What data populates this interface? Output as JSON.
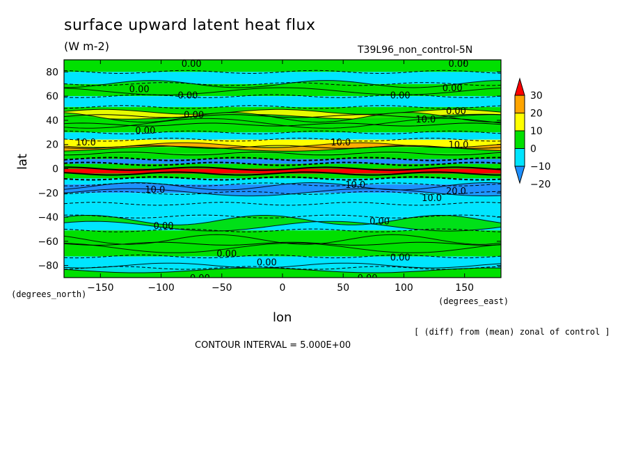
{
  "title": "surface upward latent heat flux",
  "units": "(W m-2)",
  "run_label": "T39L96_non_control-5N",
  "colors": {
    "band_-20": "#1e90ff",
    "band_-10": "#00e5ff",
    "band_0": "#00e000",
    "band_10": "#ffff00",
    "band_20": "#ffa500",
    "band_30": "#ff0000",
    "contour_line": "#000000"
  },
  "chart_data": {
    "type": "heatmap",
    "title": "surface upward latent heat flux",
    "units": "(W m-2)",
    "xlabel": "lon",
    "ylabel": "lat",
    "x_unit_label": "(degrees_east)",
    "y_unit_label": "(degrees_north)",
    "xlim": [
      -180,
      180
    ],
    "ylim": [
      -90,
      90
    ],
    "x_ticks": [
      -150,
      -100,
      -50,
      0,
      50,
      100,
      150
    ],
    "y_ticks": [
      -80,
      -60,
      -40,
      -20,
      0,
      20,
      40,
      60,
      80
    ],
    "colorbar": {
      "levels": [
        -20,
        -10,
        0,
        10,
        20,
        30
      ],
      "labels": [
        "-20",
        "-10",
        "0",
        "10",
        "20",
        "30"
      ]
    },
    "contour_interval": "5.000E+00",
    "footnote": "[ (diff) from (mean) zonal of control ]",
    "zonal_profile": [
      {
        "lat": 85,
        "value": 0
      },
      {
        "lat": 75,
        "value": -5
      },
      {
        "lat": 65,
        "value": 0
      },
      {
        "lat": 55,
        "value": -5
      },
      {
        "lat": 47,
        "value": 0
      },
      {
        "lat": 40,
        "value": 5
      },
      {
        "lat": 33,
        "value": 0
      },
      {
        "lat": 27,
        "value": -5
      },
      {
        "lat": 21,
        "value": 15
      },
      {
        "lat": 15,
        "value": 5
      },
      {
        "lat": 10,
        "value": 0
      },
      {
        "lat": 6,
        "value": -20
      },
      {
        "lat": 2,
        "value": 0
      },
      {
        "lat": -2,
        "value": 30
      },
      {
        "lat": -6,
        "value": 5
      },
      {
        "lat": -10,
        "value": -10
      },
      {
        "lat": -16,
        "value": -15
      },
      {
        "lat": -24,
        "value": -5
      },
      {
        "lat": -34,
        "value": -5
      },
      {
        "lat": -45,
        "value": -5
      },
      {
        "lat": -57,
        "value": 0
      },
      {
        "lat": -67,
        "value": 0
      },
      {
        "lat": -78,
        "value": -5
      },
      {
        "lat": -86,
        "value": 0
      }
    ],
    "contour_labels": [
      {
        "text": "0.00",
        "lon": -75,
        "lat": 87
      },
      {
        "text": "0.00",
        "lon": 145,
        "lat": 87
      },
      {
        "text": "0.00",
        "lon": -118,
        "lat": 66
      },
      {
        "text": "0.00",
        "lon": -78,
        "lat": 61
      },
      {
        "text": "0.00",
        "lon": 97,
        "lat": 61
      },
      {
        "text": "0.00",
        "lon": 140,
        "lat": 67
      },
      {
        "text": "0.00",
        "lon": -73,
        "lat": 45
      },
      {
        "text": "0.00",
        "lon": 143,
        "lat": 48
      },
      {
        "text": "10.0",
        "lon": 118,
        "lat": 41
      },
      {
        "text": "0.00",
        "lon": -113,
        "lat": 32
      },
      {
        "text": "10.0",
        "lon": -162,
        "lat": 22
      },
      {
        "text": "10.0",
        "lon": 48,
        "lat": 22
      },
      {
        "text": "10.0",
        "lon": 145,
        "lat": 20
      },
      {
        "text": "10.0",
        "lon": -105,
        "lat": -17
      },
      {
        "text": "10.0",
        "lon": 60,
        "lat": -13
      },
      {
        "text": "20.0",
        "lon": 143,
        "lat": -18
      },
      {
        "text": "10.0",
        "lon": 123,
        "lat": -24
      },
      {
        "text": "0.00",
        "lon": 80,
        "lat": -43
      },
      {
        "text": "0.00",
        "lon": -98,
        "lat": -47
      },
      {
        "text": "0.00",
        "lon": -46,
        "lat": -70
      },
      {
        "text": "0.00",
        "lon": -13,
        "lat": -77
      },
      {
        "text": "0.00",
        "lon": 97,
        "lat": -73
      },
      {
        "text": "0.00",
        "lon": -68,
        "lat": -90
      },
      {
        "text": "0.00",
        "lon": 70,
        "lat": -90
      }
    ]
  }
}
